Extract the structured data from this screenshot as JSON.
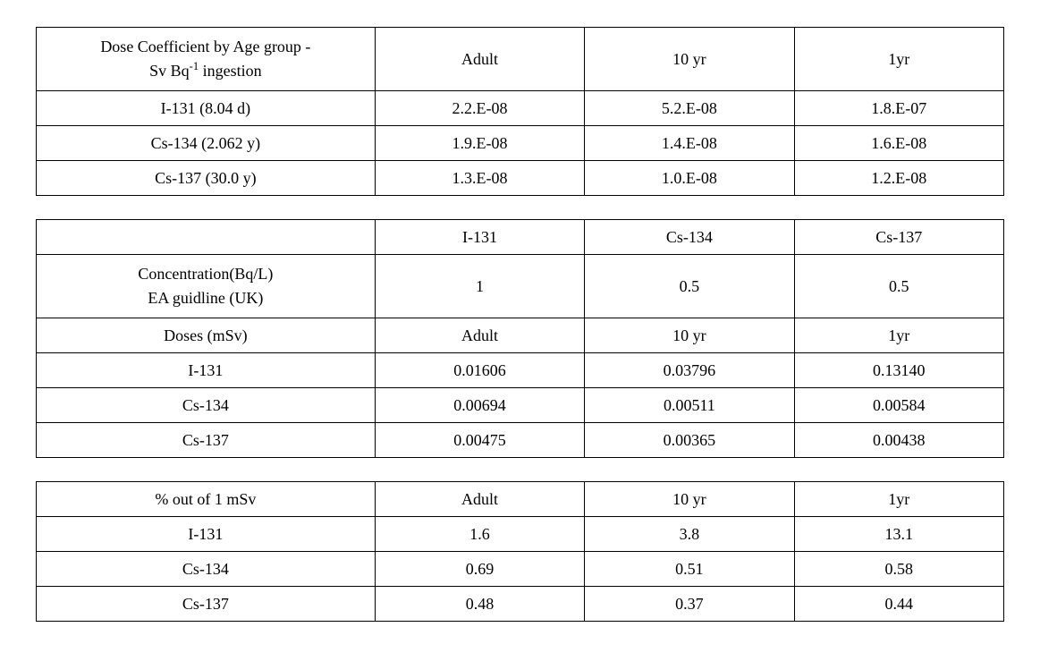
{
  "table1": {
    "header": {
      "label_line1": "Dose Coefficient by Age group -",
      "label_line2": "Sv Bq",
      "label_sup": "-1",
      "label_after_sup": " ingestion",
      "col1": "Adult",
      "col2": "10 yr",
      "col3": "1yr"
    },
    "rows": [
      {
        "label": "I-131 (8.04 d)",
        "c1": "2.2.E-08",
        "c2": "5.2.E-08",
        "c3": "1.8.E-07"
      },
      {
        "label": "Cs-134 (2.062 y)",
        "c1": "1.9.E-08",
        "c2": "1.4.E-08",
        "c3": "1.6.E-08"
      },
      {
        "label": "Cs-137 (30.0 y)",
        "c1": "1.3.E-08",
        "c2": "1.0.E-08",
        "c3": "1.2.E-08"
      }
    ]
  },
  "table2": {
    "header": {
      "label": "",
      "c1": "I-131",
      "c2": "Cs-134",
      "c3": "Cs-137"
    },
    "row_conc": {
      "label_line1": "Concentration(Bq/L)",
      "label_line2": "EA guidline (UK)",
      "c1": "1",
      "c2": "0.5",
      "c3": "0.5"
    },
    "row_doses_hdr": {
      "label": "Doses (mSv)",
      "c1": "Adult",
      "c2": "10 yr",
      "c3": "1yr"
    },
    "rows": [
      {
        "label": "I-131",
        "c1": "0.01606",
        "c2": "0.03796",
        "c3": "0.13140"
      },
      {
        "label": "Cs-134",
        "c1": "0.00694",
        "c2": "0.00511",
        "c3": "0.00584"
      },
      {
        "label": "Cs-137",
        "c1": "0.00475",
        "c2": "0.00365",
        "c3": "0.00438"
      }
    ]
  },
  "table3": {
    "header": {
      "label": "% out of  1 mSv",
      "c1": "Adult",
      "c2": "10 yr",
      "c3": "1yr"
    },
    "rows": [
      {
        "label": "I-131",
        "c1": "1.6",
        "c2": "3.8",
        "c3": "13.1"
      },
      {
        "label": "Cs-134",
        "c1": "0.69",
        "c2": "0.51",
        "c3": "0.58"
      },
      {
        "label": "Cs-137",
        "c1": "0.48",
        "c2": "0.37",
        "c3": "0.44"
      }
    ]
  }
}
